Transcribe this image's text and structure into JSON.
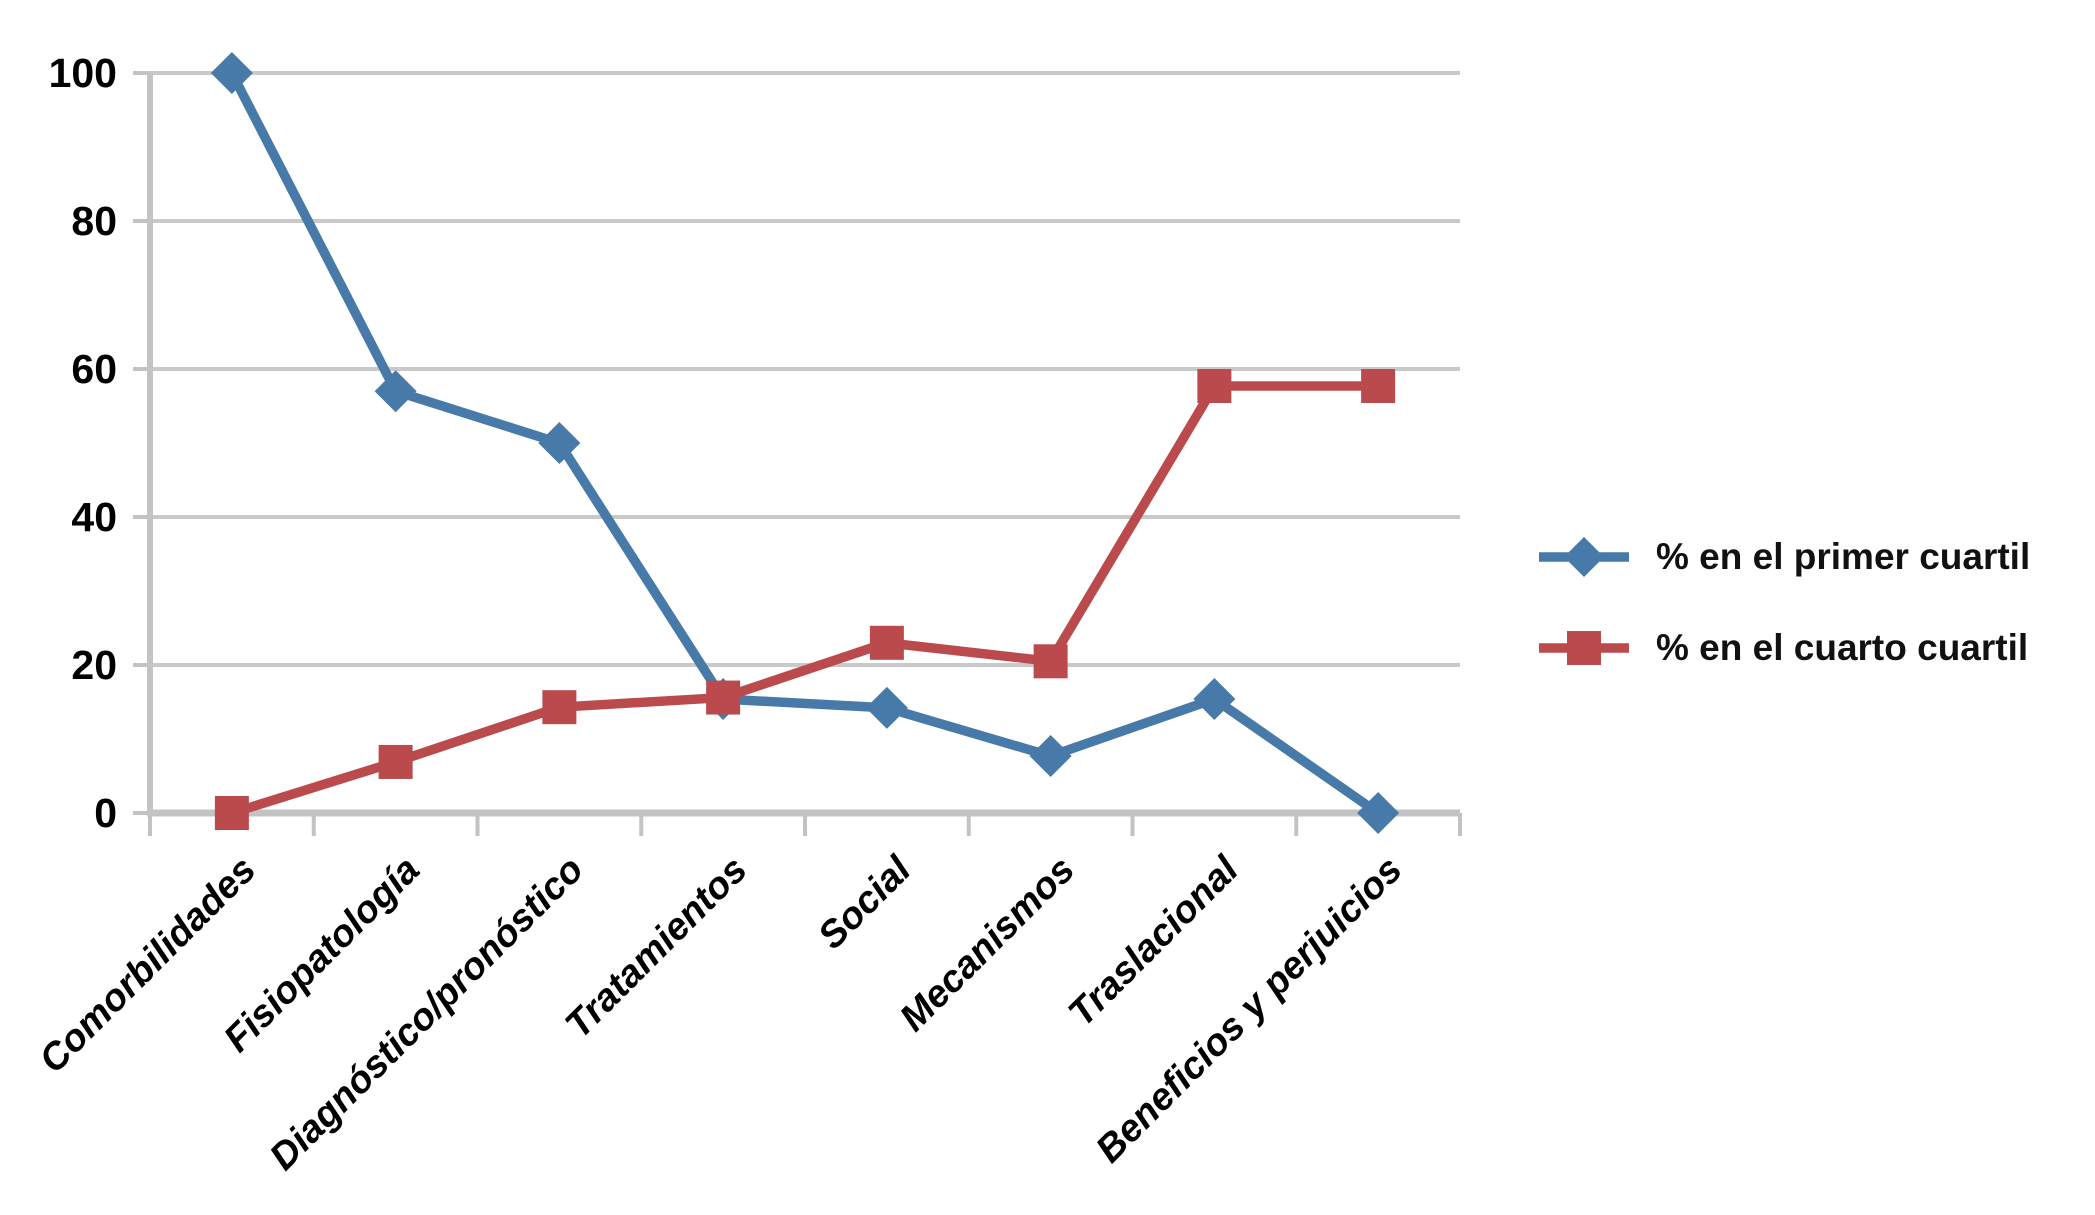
{
  "chart_data": {
    "type": "line",
    "title": "",
    "xlabel": "",
    "ylabel": "",
    "categories": [
      "Comorbilidades",
      "Fisiopatología",
      "Diagnóstico/pronóstico",
      "Tratamientos",
      "Social",
      "Mecanismos",
      "Traslacional",
      "Beneficios y perjuicios"
    ],
    "series": [
      {
        "name": "% en el primer cuartil",
        "marker": "diamond",
        "color": "#4779A9",
        "values": [
          100,
          57,
          50,
          15.4,
          14.2,
          7.7,
          15.4,
          0
        ]
      },
      {
        "name": "% en el cuarto cuartil",
        "marker": "square",
        "color": "#BB4A4D",
        "values": [
          0,
          6.9,
          14.3,
          15.6,
          23,
          20.5,
          57.7,
          57.7
        ]
      }
    ],
    "ylim": [
      0,
      100
    ],
    "yticks": [
      0,
      20,
      40,
      60,
      80,
      100
    ],
    "grid": "horizontal",
    "gridline_color": "#C9C9C9",
    "axis_color": "#C3C3C3",
    "tick_label_color": "#000000",
    "legend_position": "right",
    "x_label_rotation_deg": 45
  }
}
